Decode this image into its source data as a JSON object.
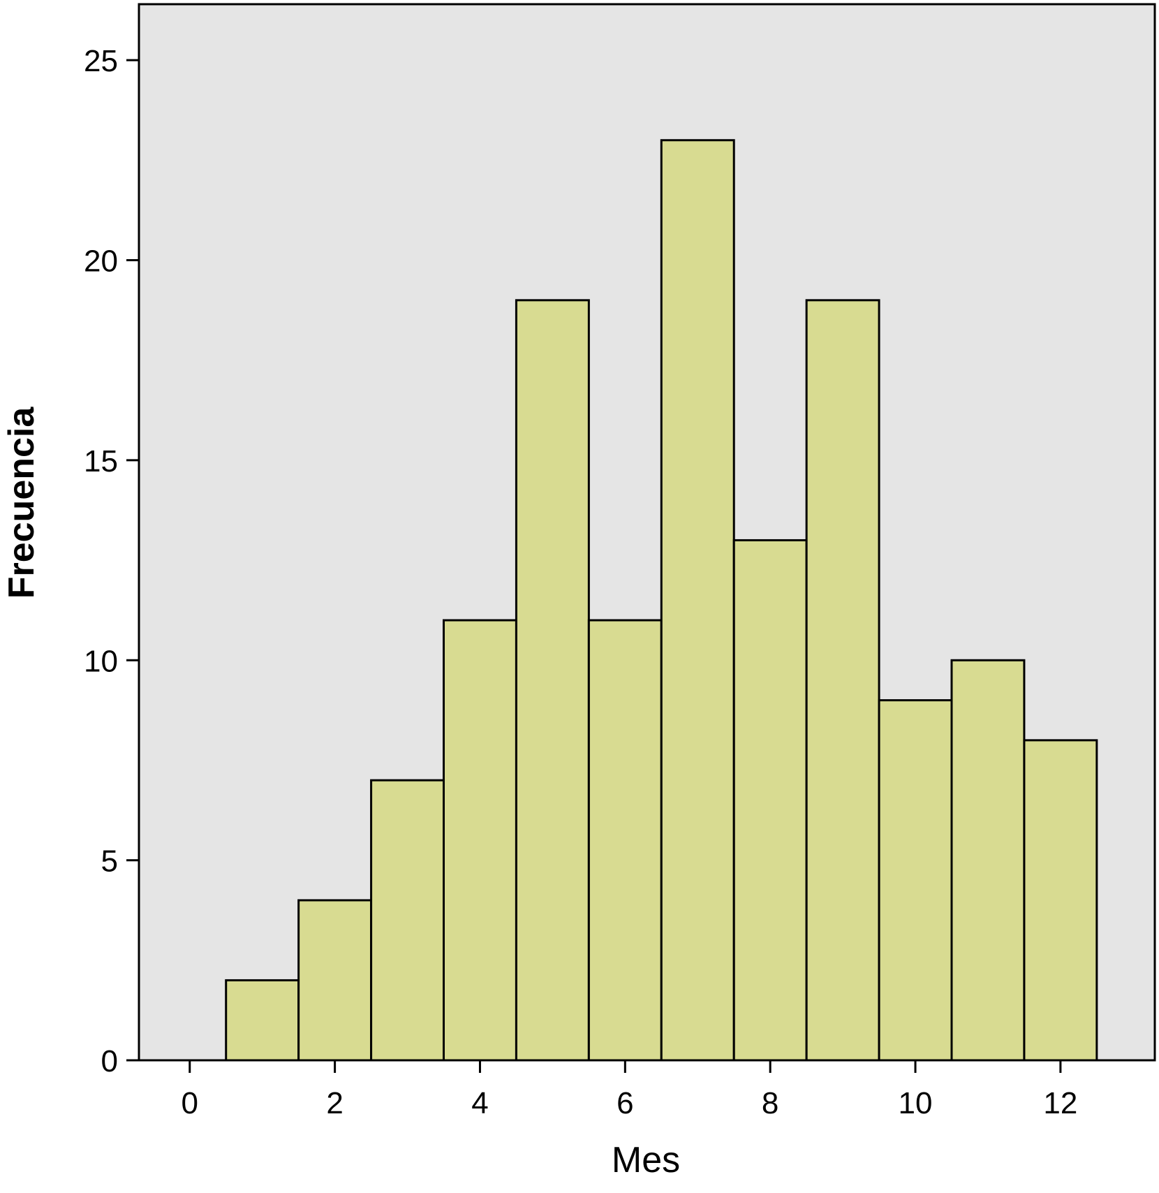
{
  "chart_data": {
    "type": "bar",
    "subtype": "histogram",
    "x": [
      1,
      2,
      3,
      4,
      5,
      6,
      7,
      8,
      9,
      10,
      11,
      12
    ],
    "values": [
      2,
      4,
      7,
      11,
      19,
      11,
      23,
      13,
      19,
      9,
      10,
      8
    ],
    "bin_width": 1,
    "xlabel": "Mes",
    "ylabel": "Frecuencia",
    "xlim": [
      -0.7,
      13.3
    ],
    "ylim": [
      0,
      26.4
    ],
    "xticks": [
      0,
      2,
      4,
      6,
      8,
      10,
      12
    ],
    "yticks": [
      0,
      5,
      10,
      15,
      20,
      25
    ],
    "grid": false,
    "legend": "none",
    "colors": {
      "bar_fill": "#d8db91",
      "bar_stroke": "#000000",
      "plot_background": "#e5e5e5",
      "frame": "#000000"
    }
  }
}
